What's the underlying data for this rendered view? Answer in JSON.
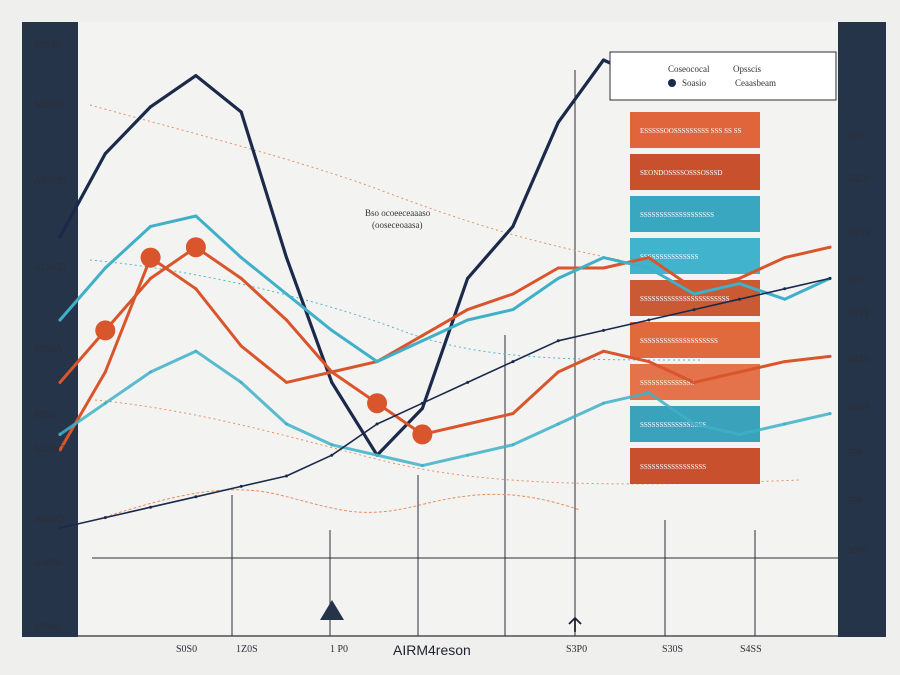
{
  "chart_data": {
    "type": "line",
    "title": "AIRM4reson",
    "annotation": [
      "Bso ocoeeceaaaso",
      "(ooseceoaasa)"
    ],
    "left_ticks": [
      "S0SS0",
      "S0U0D",
      "ABS0D",
      "ACS0D",
      "S3S8A",
      "S0S0",
      "SAS0C",
      "A0S0D",
      "AS0S0",
      "S0S0S"
    ],
    "right_ticks": [
      "S3P",
      "S0ZP",
      "SAYP",
      "S3P",
      "S3SY",
      "S0ZS",
      "SR0P",
      "S3P",
      "S3P",
      "S0S0"
    ],
    "bottom_ticks": [
      "S0S0",
      "1Z0S",
      "1 P0",
      "S3P0",
      "S30S",
      "S4SS"
    ],
    "legend": {
      "col1_title": "Coseococal",
      "col2_title": "Opsscis",
      "item1": "Soasio",
      "item2": "Ceaasbeam"
    },
    "bands": [
      {
        "label": "ESSSSSOOSSSSSSSSS SSS SS SS",
        "color": "#e0653a"
      },
      {
        "label": "SEONDOSSSSOSSSOSSSD",
        "color": "#c9502c"
      },
      {
        "label": "SSSSSSSSSSSSSSSSSSS",
        "color": "#3aa7c0"
      },
      {
        "label": "SSSSSSSSSSSSSSS",
        "color": "#42b3cc"
      },
      {
        "label": "SSSSSSSSSSSSSSSSSSSSSSS",
        "color": "#c95a34"
      },
      {
        "label": "SSSSSSSSSSSSSSSSSSSS",
        "color": "#e06a3c"
      },
      {
        "label": "SSSSSSSSSSSSSS",
        "color": "#e4724a"
      },
      {
        "label": "SSSSSSSSSSSSSSSSS",
        "color": "#3ba2bb"
      },
      {
        "label": "SSSSSSSSSSSSSSSSS",
        "color": "#c9502c"
      }
    ],
    "x": [
      0,
      1,
      2,
      3,
      4,
      5,
      6,
      7,
      8,
      9,
      10,
      11,
      12,
      13,
      14,
      15,
      16,
      17
    ],
    "ylim": [
      0,
      100
    ],
    "series": [
      {
        "color": "#1b2a4a",
        "values": [
          66,
          82,
          91,
          97,
          90,
          62,
          38,
          24,
          33,
          58,
          68,
          88,
          100,
          96,
          null,
          null,
          null,
          null
        ]
      },
      {
        "color": "#d9552b",
        "values": [
          25,
          40,
          62,
          56,
          45,
          38,
          40,
          42,
          47,
          52,
          55,
          60,
          60,
          62,
          56,
          58,
          62,
          64
        ]
      },
      {
        "color": "#3fb0c8",
        "values": [
          50,
          60,
          68,
          70,
          62,
          55,
          48,
          42,
          46,
          50,
          52,
          58,
          62,
          60,
          55,
          57,
          54,
          58
        ]
      },
      {
        "color": "#d9552b",
        "values": [
          38,
          48,
          58,
          64,
          58,
          50,
          40,
          34,
          28,
          30,
          32,
          40,
          44,
          42,
          38,
          40,
          42,
          43
        ]
      },
      {
        "color": "#3fb0c8",
        "values": [
          28,
          34,
          40,
          44,
          38,
          30,
          26,
          24,
          22,
          24,
          26,
          30,
          34,
          36,
          30,
          28,
          30,
          32
        ]
      },
      {
        "color": "#1b2a4a",
        "values": [
          10,
          12,
          14,
          16,
          18,
          20,
          24,
          30,
          34,
          38,
          42,
          46,
          48,
          50,
          52,
          54,
          56,
          58
        ]
      }
    ],
    "markers": [
      {
        "series": 1,
        "index": 2
      },
      {
        "series": 3,
        "index": 1
      },
      {
        "series": 3,
        "index": 3
      },
      {
        "series": 3,
        "index": 7
      },
      {
        "series": 3,
        "index": 8
      }
    ]
  }
}
